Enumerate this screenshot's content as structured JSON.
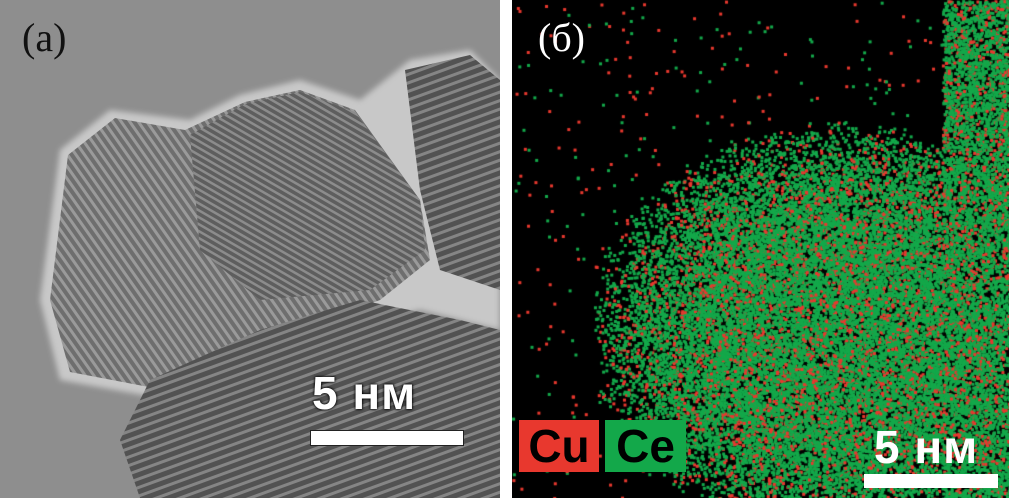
{
  "panel_a": {
    "label": "(а)",
    "scale_label": "5 нм"
  },
  "panel_b": {
    "label": "(б)",
    "scale_label": "5 нм",
    "legend": [
      {
        "element": "Cu",
        "color": "#e8382e"
      },
      {
        "element": "Ce",
        "color": "#13a84a"
      }
    ]
  }
}
